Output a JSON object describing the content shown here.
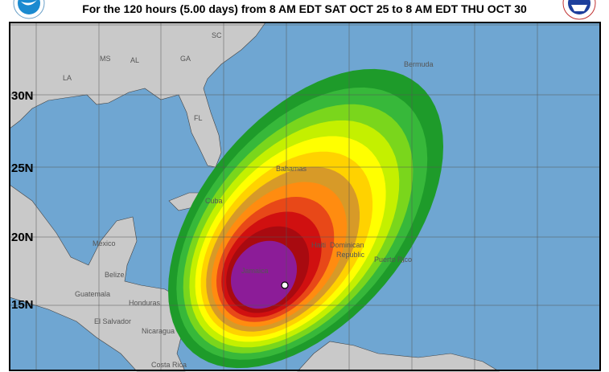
{
  "header": {
    "title": "For the 120 hours (5.00 days) from 8 AM EDT SAT OCT 25 to 8 AM EDT THU OCT 30",
    "left_logo": "noaa-logo",
    "right_logo": "nws-logo"
  },
  "map": {
    "colors": {
      "ocean": "#6fa6d2",
      "land": "#c9c9c9",
      "probability_bands": [
        "#1e9b2a",
        "#37b83a",
        "#7ad61c",
        "#c4f000",
        "#ffff00",
        "#ffd200",
        "#d79a28",
        "#ff8c10",
        "#e84818",
        "#d01010",
        "#a80a10",
        "#8c1c98"
      ]
    },
    "latitude_labels": [
      "30N",
      "25N",
      "20N",
      "15N"
    ],
    "place_labels": {
      "bermuda": "Bermuda",
      "la": "LA",
      "ms": "MS",
      "al": "AL",
      "ga": "GA",
      "sc": "SC",
      "fl": "FL",
      "bahamas": "Bahamas",
      "cuba": "Cuba",
      "mexico": "Mexico",
      "belize": "Belize",
      "guatemala": "Guatemala",
      "honduras": "Honduras",
      "el_salvador": "El Salvador",
      "nicaragua": "Nicaragua",
      "costa_rica": "Costa Rica",
      "jamaica": "Jamaica",
      "haiti": "Haiti",
      "dominican": "Dominican",
      "republic": "Republic",
      "puerto_rico": "Puerto Rico"
    },
    "storm_marker": "current-storm-position"
  }
}
